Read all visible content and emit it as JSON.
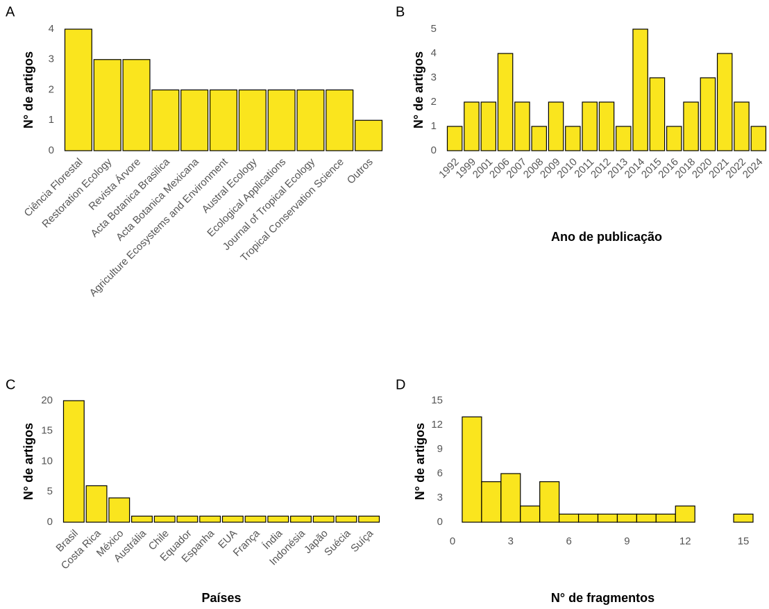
{
  "chart_data": [
    {
      "type": "bar",
      "panel": "A",
      "ylabel": "N° de artigos",
      "color": "#fae51e",
      "categories": [
        "Ciência Florestal",
        "Restoration Ecology",
        "Revista Árvore",
        "Acta Botanica Brasilica",
        "Acta Botanica Mexicana",
        "Agriculture Ecosystems and Environment",
        "Austral Ecology",
        "Ecological Applications",
        "Journal of Tropical Ecology",
        "Tropical Conservation Science",
        "Outros"
      ],
      "values": [
        4,
        3,
        3,
        2,
        2,
        2,
        2,
        2,
        2,
        2,
        1
      ],
      "ylim": [
        0,
        4
      ],
      "yticks": [
        0,
        1,
        2,
        3,
        4
      ]
    },
    {
      "type": "bar",
      "panel": "B",
      "ylabel": "N° de artigos",
      "xlabel": "Ano de publicação",
      "color": "#fae51e",
      "categories": [
        "1992",
        "1999",
        "2001",
        "2006",
        "2007",
        "2008",
        "2009",
        "2010",
        "2011",
        "2012",
        "2013",
        "2014",
        "2015",
        "2016",
        "2018",
        "2020",
        "2021",
        "2022",
        "2024"
      ],
      "values": [
        1,
        2,
        2,
        4,
        2,
        1,
        2,
        1,
        2,
        2,
        1,
        5,
        3,
        1,
        2,
        3,
        4,
        2,
        1
      ],
      "ylim": [
        0,
        5
      ],
      "yticks": [
        0,
        1,
        2,
        3,
        4,
        5
      ]
    },
    {
      "type": "bar",
      "panel": "C",
      "ylabel": "N° de artigos",
      "xlabel": "Países",
      "color": "#fae51e",
      "categories": [
        "Brasil",
        "Costa Rica",
        "México",
        "Austrália",
        "Chile",
        "Equador",
        "Espanha",
        "EUA",
        "França",
        "Índia",
        "Indonésia",
        "Japão",
        "Suécia",
        "Suíça"
      ],
      "values": [
        20,
        6,
        4,
        1,
        1,
        1,
        1,
        1,
        1,
        1,
        1,
        1,
        1,
        1
      ],
      "ylim": [
        0,
        20
      ],
      "yticks": [
        0,
        5,
        10,
        15,
        20
      ]
    },
    {
      "type": "histogram",
      "panel": "D",
      "ylabel": "N° de artigos",
      "xlabel": "N° de fragmentos",
      "color": "#fae51e",
      "bins": [
        0.5,
        1.5,
        2.5,
        3.5,
        4.5,
        5.5,
        6.5,
        7.5,
        8.5,
        9.5,
        10.5,
        11.5,
        12.5,
        13.5,
        14.5,
        15.5
      ],
      "values": [
        13,
        5,
        6,
        2,
        5,
        1,
        1,
        1,
        1,
        1,
        1,
        2,
        0,
        0,
        1
      ],
      "xlim": [
        0,
        15.5
      ],
      "xticks": [
        0,
        3,
        6,
        9,
        12,
        15
      ],
      "ylim": [
        0,
        15
      ],
      "yticks": [
        0,
        3,
        6,
        9,
        12,
        15
      ]
    }
  ]
}
